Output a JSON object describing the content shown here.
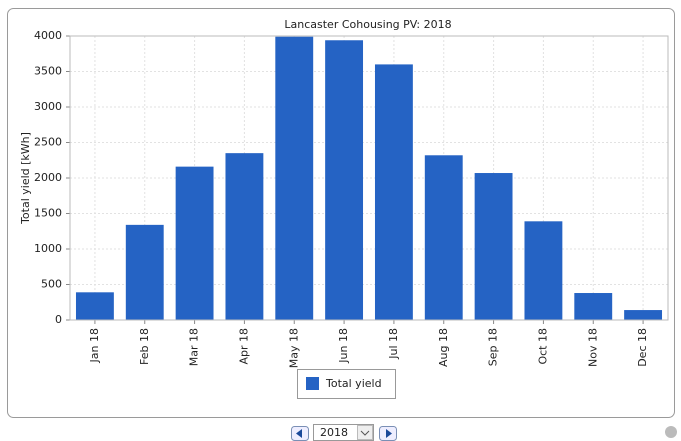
{
  "chart_data": {
    "type": "bar",
    "title": "Lancaster Cohousing PV: 2018",
    "y_label": "Total yield [kWh]",
    "categories": [
      "Jan 18",
      "Feb 18",
      "Mar 18",
      "Apr 18",
      "May 18",
      "Jun 18",
      "Jul 18",
      "Aug 18",
      "Sep 18",
      "Oct 18",
      "Nov 18",
      "Dec 18"
    ],
    "series": [
      {
        "name": "Total yield",
        "color": "#2563c4",
        "values": [
          390,
          1340,
          2160,
          2350,
          3990,
          3940,
          3600,
          2320,
          2070,
          1390,
          380,
          140
        ]
      }
    ],
    "ylim": [
      0,
      4000
    ],
    "yticks": [
      0,
      500,
      1000,
      1500,
      2000,
      2500,
      3000,
      3500,
      4000
    ],
    "grid": true,
    "legend": "bottom"
  },
  "controls": {
    "year": "2018"
  }
}
